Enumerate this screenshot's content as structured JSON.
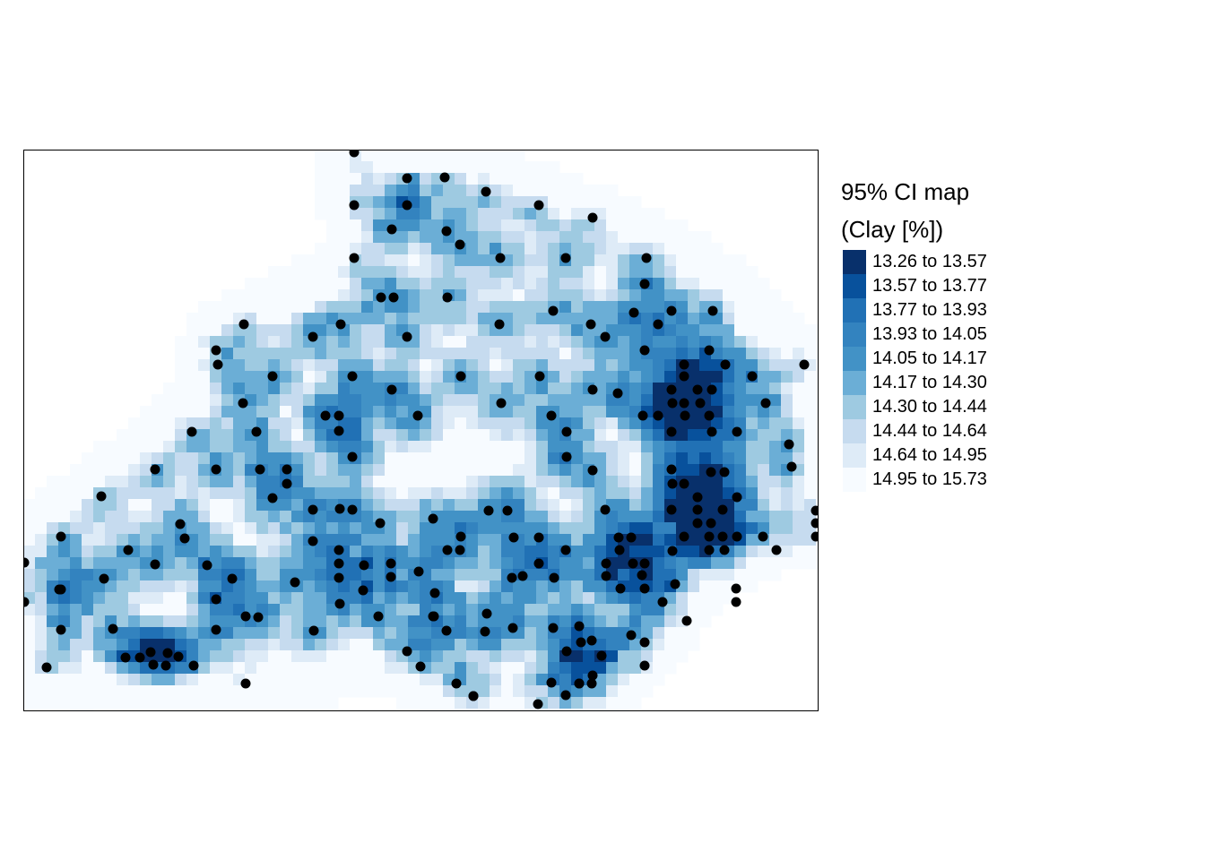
{
  "legend": {
    "title_line1": "95% CI map",
    "title_line2": "(Clay [%])",
    "classes": [
      {
        "label": "13.26 to 13.57",
        "color": "#08306b"
      },
      {
        "label": "13.57 to 13.77",
        "color": "#08519c"
      },
      {
        "label": "13.77 to 13.93",
        "color": "#2171b5"
      },
      {
        "label": "13.93 to 14.05",
        "color": "#3383bf"
      },
      {
        "label": "14.05 to 14.17",
        "color": "#4292c6"
      },
      {
        "label": "14.17 to 14.30",
        "color": "#6baed6"
      },
      {
        "label": "14.30 to 14.44",
        "color": "#9ecae1"
      },
      {
        "label": "14.44 to 14.64",
        "color": "#c6dbef"
      },
      {
        "label": "14.64 to 14.95",
        "color": "#deebf7"
      },
      {
        "label": "14.95 to 15.73",
        "color": "#f7fbff"
      }
    ]
  },
  "map": {
    "background_color": "#ffffff",
    "point_color": "#000000",
    "frame_color": "#000000"
  }
}
